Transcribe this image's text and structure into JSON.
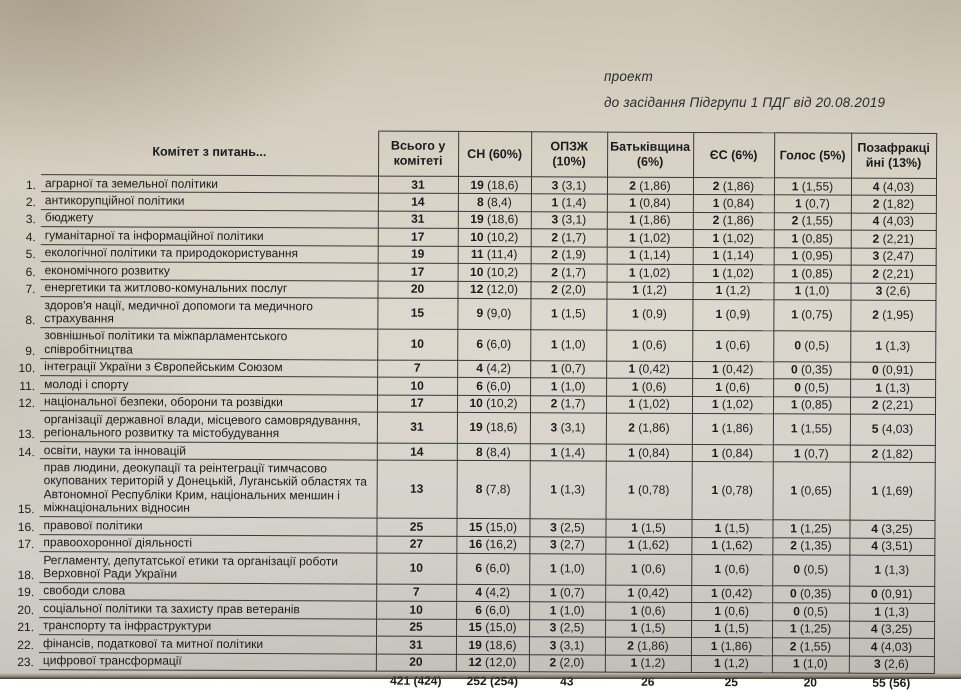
{
  "note": {
    "line1": "проект",
    "line2": "до засідання Підгрупи 1 ПДГ від 20.08.2019"
  },
  "colors": {
    "paper": "#d6d1c5",
    "ink": "#1b1b1d",
    "table_border": "#36383a"
  },
  "table": {
    "columns": [
      "Комітет з питань...",
      "Всього у комітеті",
      "СН (60%)",
      "ОПЗЖ (10%)",
      "Батьківщина (6%)",
      "ЄС (6%)",
      "Голос (5%)",
      "Позафракційні (13%)"
    ],
    "rows": [
      {
        "num": "1.",
        "name": "аграрної та земельної політики",
        "values": [
          "31",
          "19 (18,6)",
          "3 (3,1)",
          "2 (1,86)",
          "2 (1,86)",
          "1 (1,55)",
          "4 (4,03)"
        ]
      },
      {
        "num": "2.",
        "name": "антикорупційної політики",
        "values": [
          "14",
          "8 (8,4)",
          "1 (1,4)",
          "1 (0,84)",
          "1 (0,84)",
          "1 (0,7)",
          "2 (1,82)"
        ]
      },
      {
        "num": "3.",
        "name": "бюджету",
        "values": [
          "31",
          "19 (18,6)",
          "3 (3,1)",
          "1 (1,86)",
          "2 (1,86)",
          "2 (1,55)",
          "4 (4,03)"
        ]
      },
      {
        "num": "4.",
        "name": "гуманітарної та інформаційної політики",
        "values": [
          "17",
          "10 (10,2)",
          "2 (1,7)",
          "1 (1,02)",
          "1 (1,02)",
          "1 (0,85)",
          "2 (2,21)"
        ]
      },
      {
        "num": "5.",
        "name": "екологічної політики та природокористування",
        "values": [
          "19",
          "11 (11,4)",
          "2 (1,9)",
          "1 (1,14)",
          "1 (1,14)",
          "1 (0,95)",
          "3 (2,47)"
        ]
      },
      {
        "num": "6.",
        "name": "економічного розвитку",
        "values": [
          "17",
          "10 (10,2)",
          "2 (1,7)",
          "1 (1,02)",
          "1 (1,02)",
          "1 (0,85)",
          "2 (2,21)"
        ]
      },
      {
        "num": "7.",
        "name": "енергетики та житлово-комунальних послуг",
        "values": [
          "20",
          "12 (12,0)",
          "2 (2,0)",
          "1 (1,2)",
          "1 (1,2)",
          "1 (1,0)",
          "3 (2,6)"
        ]
      },
      {
        "num": "8.",
        "name": "здоров'я нації, медичної допомоги та медичного страхування",
        "values": [
          "15",
          "9 (9,0)",
          "1 (1,5)",
          "1 (0,9)",
          "1 (0,9)",
          "1 (0,75)",
          "2 (1,95)"
        ]
      },
      {
        "num": "9.",
        "name": "зовнішньої політики та міжпарламентського співробітництва",
        "values": [
          "10",
          "6 (6,0)",
          "1 (1,0)",
          "1 (0,6)",
          "1 (0,6)",
          "0 (0,5)",
          "1 (1,3)"
        ]
      },
      {
        "num": "10.",
        "name": "інтеграції України з Європейським Союзом",
        "values": [
          "7",
          "4 (4,2)",
          "1 (0,7)",
          "1 (0,42)",
          "1 (0,42)",
          "0 (0,35)",
          "0 (0,91)"
        ]
      },
      {
        "num": "11.",
        "name": "молоді і спорту",
        "values": [
          "10",
          "6 (6,0)",
          "1 (1,0)",
          "1 (0,6)",
          "1 (0,6)",
          "0 (0,5)",
          "1 (1,3)"
        ]
      },
      {
        "num": "12.",
        "name": "національної безпеки, оборони та розвідки",
        "values": [
          "17",
          "10 (10,2)",
          "2 (1,7)",
          "1 (1,02)",
          "1 (1,02)",
          "1 (0,85)",
          "2 (2,21)"
        ]
      },
      {
        "num": "13.",
        "name": "організації державної влади, місцевого самоврядування, регіонального розвитку та містобудування",
        "values": [
          "31",
          "19 (18,6)",
          "3 (3,1)",
          "2 (1,86)",
          "1 (1,86)",
          "1 (1,55)",
          "5 (4,03)"
        ]
      },
      {
        "num": "14.",
        "name": "освіти, науки та інновацій",
        "values": [
          "14",
          "8 (8,4)",
          "1 (1,4)",
          "1 (0,84)",
          "1 (0,84)",
          "1 (0,7)",
          "2 (1,82)"
        ]
      },
      {
        "num": "15.",
        "name": "прав людини, деокупації та реінтеграції тимчасово окупованих територій у Донецькій, Луганській областях та Автономної Республіки Крим, національних меншин і міжнаціональних відносин",
        "values": [
          "13",
          "8 (7,8)",
          "1 (1,3)",
          "1 (0,78)",
          "1 (0,78)",
          "1 (0,65)",
          "1 (1,69)"
        ]
      },
      {
        "num": "16.",
        "name": "правової політики",
        "values": [
          "25",
          "15 (15,0)",
          "3 (2,5)",
          "1 (1,5)",
          "1 (1,5)",
          "1 (1,25)",
          "4 (3,25)"
        ]
      },
      {
        "num": "17.",
        "name": "правоохоронної діяльності",
        "values": [
          "27",
          "16 (16,2)",
          "3 (2,7)",
          "1 (1,62)",
          "1 (1,62)",
          "2 (1,35)",
          "4 (3,51)"
        ]
      },
      {
        "num": "18.",
        "name": "Регламенту, депутатської етики та організації роботи Верховної Ради України",
        "values": [
          "10",
          "6 (6,0)",
          "1 (1,0)",
          "1 (0,6)",
          "1 (0,6)",
          "0 (0,5)",
          "1 (1,3)"
        ]
      },
      {
        "num": "19.",
        "name": "свободи слова",
        "values": [
          "7",
          "4 (4,2)",
          "1 (0,7)",
          "1 (0,42)",
          "1 (0,42)",
          "0 (0,35)",
          "0 (0,91)"
        ]
      },
      {
        "num": "20.",
        "name": "соціальної політики та захисту прав ветеранів",
        "values": [
          "10",
          "6 (6,0)",
          "1 (1,0)",
          "1 (0,6)",
          "1 (0,6)",
          "0 (0,5)",
          "1 (1,3)"
        ]
      },
      {
        "num": "21.",
        "name": "транспорту та інфраструктури",
        "values": [
          "25",
          "15 (15,0)",
          "3 (2,5)",
          "1 (1,5)",
          "1 (1,5)",
          "1 (1,25)",
          "4 (3,25)"
        ]
      },
      {
        "num": "22.",
        "name": "фінансів, податкової та митної політики",
        "values": [
          "31",
          "19 (18,6)",
          "3 (3,1)",
          "2 (1,86)",
          "1 (1,86)",
          "2 (1,55)",
          "4 (4,03)"
        ]
      },
      {
        "num": "23.",
        "name": "цифрової трансформації",
        "values": [
          "20",
          "12 (12,0)",
          "2 (2,0)",
          "1 (1,2)",
          "1 (1,2)",
          "1 (1,0)",
          "3 (2,6)"
        ]
      }
    ],
    "totals": [
      "421 (424)",
      "252 (254)",
      "43",
      "26",
      "25",
      "20",
      "55 (56)"
    ]
  }
}
